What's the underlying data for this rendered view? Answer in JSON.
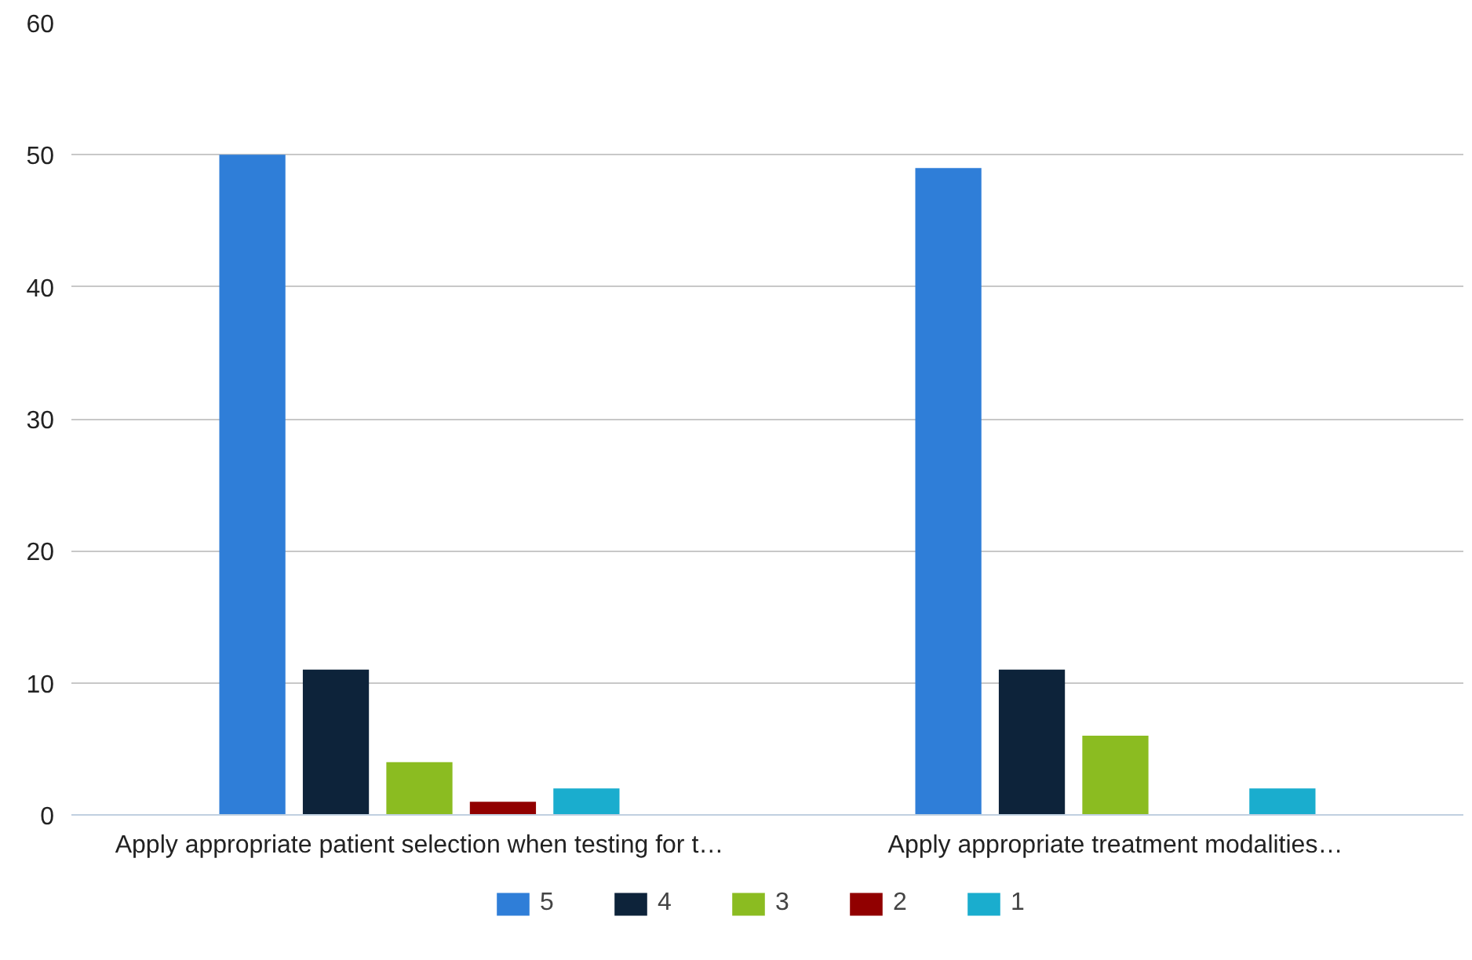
{
  "chart_data": {
    "type": "bar",
    "categories": [
      "Apply appropriate patient selection when testing for t…",
      "Apply appropriate treatment modalities…"
    ],
    "series": [
      {
        "name": "5",
        "color": "#2f7ed8",
        "values": [
          50,
          49
        ]
      },
      {
        "name": "4",
        "color": "#0d233a",
        "values": [
          11,
          11
        ]
      },
      {
        "name": "3",
        "color": "#8bbc21",
        "values": [
          4,
          6
        ]
      },
      {
        "name": "2",
        "color": "#910000",
        "values": [
          1,
          0
        ]
      },
      {
        "name": "1",
        "color": "#1aadce",
        "values": [
          2,
          2
        ]
      }
    ],
    "ylim": [
      0,
      60
    ],
    "yticks": [
      0,
      10,
      20,
      30,
      40,
      50,
      60
    ],
    "grid": "y",
    "legend": "bottom"
  }
}
